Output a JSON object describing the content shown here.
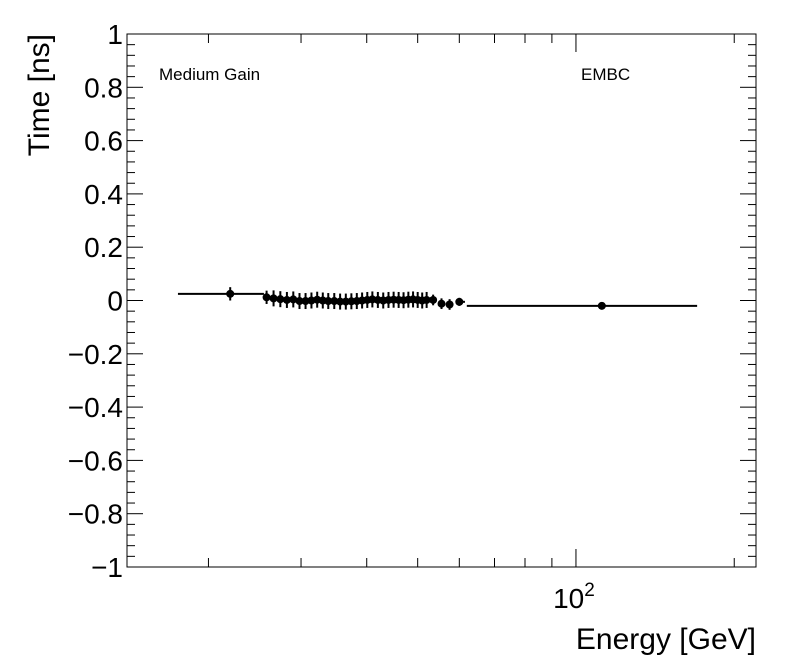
{
  "chart_data": {
    "type": "scatter",
    "xlabel": "Energy [GeV]",
    "ylabel": "Time [ns]",
    "xscale": "log",
    "xlim": [
      14,
      220
    ],
    "ylim": [
      -1,
      1
    ],
    "grid": false,
    "x_tick_labels": [
      {
        "base": "10",
        "exp": "2",
        "value": 100
      }
    ],
    "y_tick_labels": [
      "1",
      "0.8",
      "0.6",
      "0.4",
      "0.2",
      "0",
      "−0.2",
      "−0.4",
      "−0.6",
      "−0.8",
      "−1"
    ],
    "annotations": {
      "left": "Medium Gain",
      "right": "EMBC"
    },
    "points": [
      {
        "x": 22.0,
        "y": 0.025,
        "xlo": 17.5,
        "xhi": 25.5,
        "yerr": 0.025
      },
      {
        "x": 25.8,
        "y": 0.012,
        "xlo": 25.5,
        "xhi": 26.2,
        "yerr": 0.025
      },
      {
        "x": 26.6,
        "y": 0.008,
        "yerr": 0.03
      },
      {
        "x": 27.4,
        "y": 0.005,
        "yerr": 0.03
      },
      {
        "x": 28.2,
        "y": 0.002,
        "yerr": 0.03
      },
      {
        "x": 29.0,
        "y": 0.004,
        "yerr": 0.03
      },
      {
        "x": 29.8,
        "y": -0.002,
        "yerr": 0.03
      },
      {
        "x": 30.6,
        "y": -0.002,
        "yerr": 0.03
      },
      {
        "x": 31.4,
        "y": 0.0,
        "yerr": 0.03
      },
      {
        "x": 32.2,
        "y": 0.003,
        "yerr": 0.03
      },
      {
        "x": 33.0,
        "y": 0.0,
        "yerr": 0.03
      },
      {
        "x": 33.8,
        "y": -0.002,
        "yerr": 0.03
      },
      {
        "x": 34.7,
        "y": -0.002,
        "yerr": 0.03
      },
      {
        "x": 35.6,
        "y": -0.004,
        "yerr": 0.03
      },
      {
        "x": 36.5,
        "y": -0.004,
        "yerr": 0.03
      },
      {
        "x": 37.4,
        "y": -0.003,
        "yerr": 0.03
      },
      {
        "x": 38.3,
        "y": -0.002,
        "yerr": 0.03
      },
      {
        "x": 39.2,
        "y": 0.0,
        "yerr": 0.03
      },
      {
        "x": 40.1,
        "y": 0.002,
        "yerr": 0.03
      },
      {
        "x": 41.0,
        "y": 0.004,
        "yerr": 0.03
      },
      {
        "x": 42.0,
        "y": 0.002,
        "yerr": 0.03
      },
      {
        "x": 43.0,
        "y": 0.0,
        "yerr": 0.03
      },
      {
        "x": 44.0,
        "y": 0.002,
        "yerr": 0.03
      },
      {
        "x": 45.0,
        "y": 0.003,
        "yerr": 0.03
      },
      {
        "x": 46.0,
        "y": 0.002,
        "yerr": 0.03
      },
      {
        "x": 47.0,
        "y": 0.001,
        "yerr": 0.03
      },
      {
        "x": 48.0,
        "y": 0.003,
        "yerr": 0.03
      },
      {
        "x": 49.0,
        "y": 0.004,
        "yerr": 0.03
      },
      {
        "x": 50.0,
        "y": 0.002,
        "yerr": 0.03
      },
      {
        "x": 51.0,
        "y": 0.0,
        "yerr": 0.03
      },
      {
        "x": 52.0,
        "y": 0.002,
        "yerr": 0.03
      },
      {
        "x": 53.5,
        "y": 0.002,
        "yerr": 0.02
      },
      {
        "x": 55.5,
        "y": -0.012,
        "yerr": 0.02
      },
      {
        "x": 57.5,
        "y": -0.015,
        "yerr": 0.02
      },
      {
        "x": 60.0,
        "y": -0.005,
        "xlo": 59.0,
        "xhi": 61.5,
        "yerr": 0.015
      },
      {
        "x": 112.0,
        "y": -0.02,
        "xlo": 62.0,
        "xhi": 170.0,
        "yerr": 0.01
      }
    ]
  }
}
